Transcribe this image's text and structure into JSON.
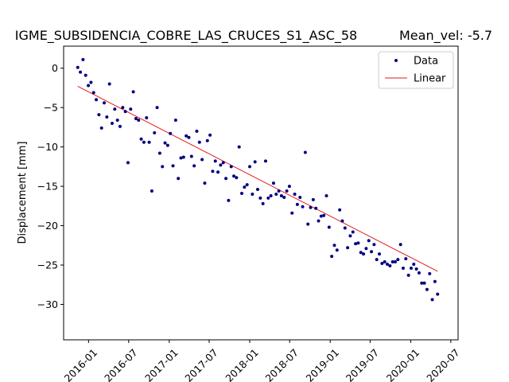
{
  "chart_data": {
    "type": "scatter",
    "title": "IGME_SUBSIDENCIA_COBRE_LAS_CRUCES_S1_ASC_58",
    "mean_vel_text": "Mean_vel: -5.7",
    "xlabel": "",
    "ylabel": "Displacement [mm]",
    "xlim": [
      "2015-09-10",
      "2020-08-03"
    ],
    "ylim": [
      -34.5,
      2.8
    ],
    "x_ticks": [
      "2016-01",
      "2016-07",
      "2017-01",
      "2017-07",
      "2018-01",
      "2018-07",
      "2019-01",
      "2019-07",
      "2020-01",
      "2020-07"
    ],
    "y_ticks": [
      0,
      -5,
      -10,
      -15,
      -20,
      -25,
      -30
    ],
    "grid": false,
    "legend_position": "top-right",
    "legend": [
      "Data",
      "Linear"
    ],
    "colors": {
      "data": "#00007f",
      "linear": "#e31a1c"
    },
    "series": [
      {
        "name": "Data",
        "marker": "point",
        "x": [
          "2015-11-13",
          "2015-11-25",
          "2015-12-07",
          "2015-12-19",
          "2015-12-31",
          "2016-01-12",
          "2016-01-24",
          "2016-02-05",
          "2016-02-17",
          "2016-02-29",
          "2016-03-12",
          "2016-03-24",
          "2016-04-05",
          "2016-04-17",
          "2016-04-29",
          "2016-05-11",
          "2016-05-23",
          "2016-06-04",
          "2016-06-16",
          "2016-06-28",
          "2016-07-10",
          "2016-07-22",
          "2016-08-03",
          "2016-08-15",
          "2016-08-27",
          "2016-09-08",
          "2016-09-20",
          "2016-10-02",
          "2016-10-14",
          "2016-10-26",
          "2016-11-07",
          "2016-11-19",
          "2016-12-01",
          "2016-12-13",
          "2016-12-25",
          "2017-01-06",
          "2017-01-18",
          "2017-01-30",
          "2017-02-11",
          "2017-02-23",
          "2017-03-07",
          "2017-03-19",
          "2017-03-31",
          "2017-04-12",
          "2017-04-24",
          "2017-05-06",
          "2017-05-18",
          "2017-05-30",
          "2017-06-11",
          "2017-06-23",
          "2017-07-05",
          "2017-07-17",
          "2017-07-29",
          "2017-08-10",
          "2017-08-22",
          "2017-09-03",
          "2017-09-15",
          "2017-09-27",
          "2017-10-09",
          "2017-10-21",
          "2017-11-02",
          "2017-11-14",
          "2017-11-26",
          "2017-12-08",
          "2017-12-20",
          "2018-01-01",
          "2018-01-13",
          "2018-01-25",
          "2018-02-06",
          "2018-02-18",
          "2018-03-02",
          "2018-03-14",
          "2018-03-26",
          "2018-04-07",
          "2018-04-19",
          "2018-05-01",
          "2018-05-13",
          "2018-05-25",
          "2018-06-06",
          "2018-06-18",
          "2018-06-30",
          "2018-07-12",
          "2018-07-24",
          "2018-08-05",
          "2018-08-17",
          "2018-08-29",
          "2018-09-10",
          "2018-09-22",
          "2018-10-04",
          "2018-10-16",
          "2018-10-28",
          "2018-11-09",
          "2018-11-21",
          "2018-12-03",
          "2018-12-15",
          "2018-12-27",
          "2019-01-08",
          "2019-01-20",
          "2019-02-01",
          "2019-02-13",
          "2019-02-25",
          "2019-03-09",
          "2019-03-21",
          "2019-04-02",
          "2019-04-14",
          "2019-04-26",
          "2019-05-08",
          "2019-05-20",
          "2019-06-01",
          "2019-06-13",
          "2019-06-25",
          "2019-07-07",
          "2019-07-19",
          "2019-07-31",
          "2019-08-12",
          "2019-08-24",
          "2019-09-05",
          "2019-09-17",
          "2019-09-29",
          "2019-10-11",
          "2019-10-23",
          "2019-11-04",
          "2019-11-16",
          "2019-11-28",
          "2019-12-10",
          "2019-12-22",
          "2020-01-03",
          "2020-01-15",
          "2020-01-27",
          "2020-02-08",
          "2020-02-20",
          "2020-03-03",
          "2020-03-15",
          "2020-03-27",
          "2020-04-08",
          "2020-04-20",
          "2020-05-02"
        ],
        "y": [
          0.1,
          -0.5,
          1.1,
          -0.9,
          -2.2,
          -1.8,
          -3.1,
          -4.0,
          -5.9,
          -7.6,
          -4.4,
          -6.2,
          -2.0,
          -7.0,
          -5.2,
          -6.6,
          -7.4,
          -5.0,
          -5.5,
          -12.0,
          -5.2,
          -3.0,
          -6.4,
          -6.6,
          -9.0,
          -9.4,
          -6.3,
          -9.4,
          -15.6,
          -8.2,
          -5.0,
          -10.8,
          -12.5,
          -9.5,
          -9.8,
          -8.3,
          -12.4,
          -6.6,
          -14.0,
          -11.4,
          -11.3,
          -8.6,
          -8.8,
          -11.2,
          -12.4,
          -8.0,
          -9.4,
          -11.6,
          -14.6,
          -9.2,
          -8.5,
          -13.1,
          -11.8,
          -13.2,
          -12.3,
          -12.0,
          -14.0,
          -16.8,
          -12.5,
          -13.7,
          -13.9,
          -10.0,
          -15.9,
          -15.1,
          -14.8,
          -12.5,
          -16.0,
          -11.9,
          -15.4,
          -16.5,
          -17.2,
          -11.8,
          -16.5,
          -16.2,
          -14.6,
          -16.0,
          -15.6,
          -16.2,
          -16.4,
          -15.6,
          -15.0,
          -18.4,
          -16.0,
          -17.3,
          -16.4,
          -17.6,
          -10.7,
          -19.8,
          -17.7,
          -16.7,
          -17.8,
          -19.4,
          -18.8,
          -18.7,
          -16.2,
          -20.2,
          -23.9,
          -22.5,
          -23.1,
          -18.0,
          -19.4,
          -20.3,
          -22.8,
          -21.3,
          -20.8,
          -22.3,
          -22.2,
          -23.4,
          -23.6,
          -22.9,
          -21.9,
          -23.3,
          -22.4,
          -24.3,
          -23.6,
          -24.8,
          -24.6,
          -24.9,
          -25.1,
          -24.6,
          -24.6,
          -24.3,
          -22.4,
          -25.4,
          -24.2,
          -26.3,
          -25.4,
          -24.9,
          -25.5,
          -26.0,
          -27.3,
          -27.3,
          -28.1,
          -26.1,
          -29.4,
          -27.1,
          -28.7
        ]
      },
      {
        "name": "Linear",
        "x": [
          "2015-11-13",
          "2020-05-02"
        ],
        "y": [
          -2.3,
          -25.8
        ]
      }
    ]
  }
}
